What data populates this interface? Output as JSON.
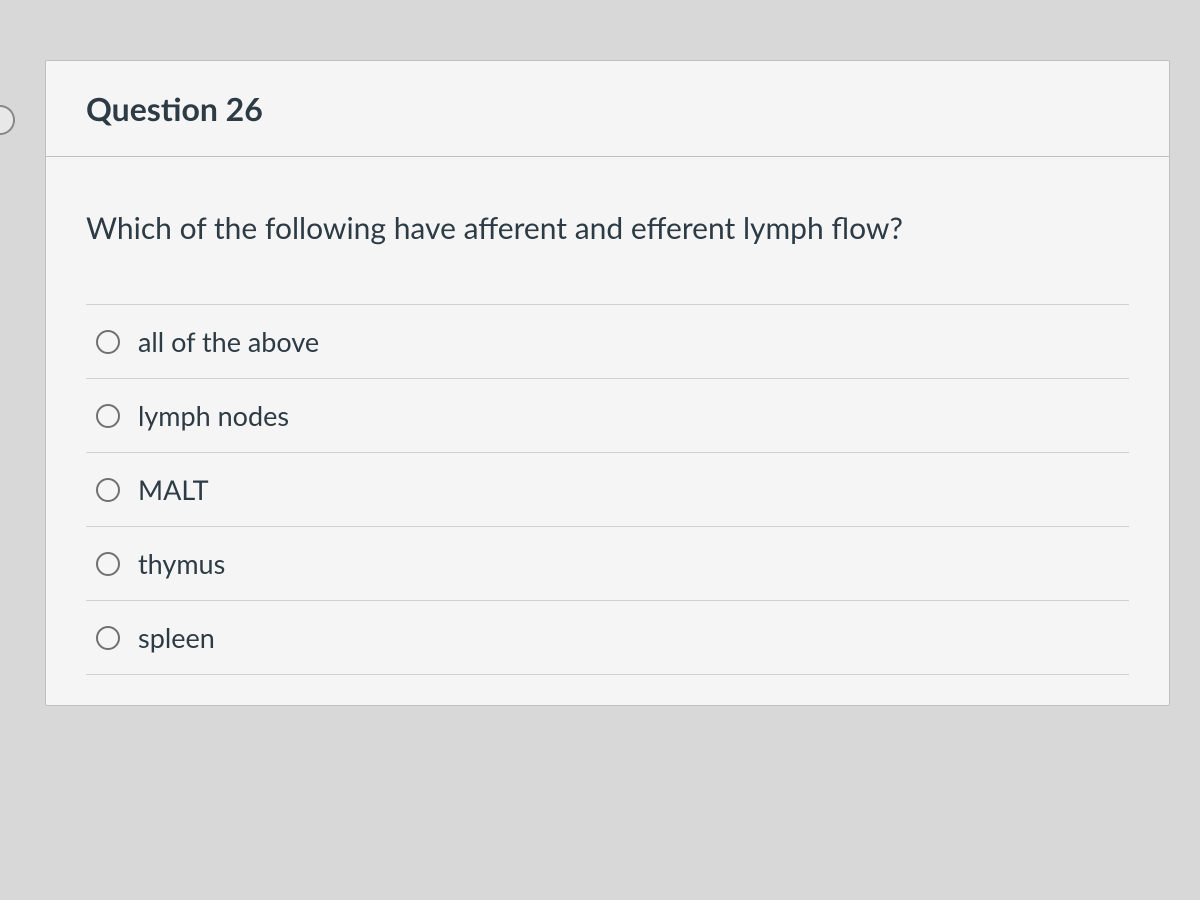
{
  "question": {
    "title": "Question 26",
    "prompt": "Which of the following have afferent and efferent lymph flow?",
    "options": [
      {
        "id": "opt-all",
        "label": "all of the above"
      },
      {
        "id": "opt-lymph",
        "label": "lymph nodes"
      },
      {
        "id": "opt-malt",
        "label": "MALT"
      },
      {
        "id": "opt-thymus",
        "label": "thymus"
      },
      {
        "id": "opt-spleen",
        "label": "spleen"
      }
    ]
  },
  "colors": {
    "card_bg": "#f5f5f5",
    "page_bg": "#d8d8d8",
    "border": "#c0c0c0",
    "divider": "#d0d0d0",
    "text": "#2d3b45",
    "radio_border": "#707070"
  }
}
